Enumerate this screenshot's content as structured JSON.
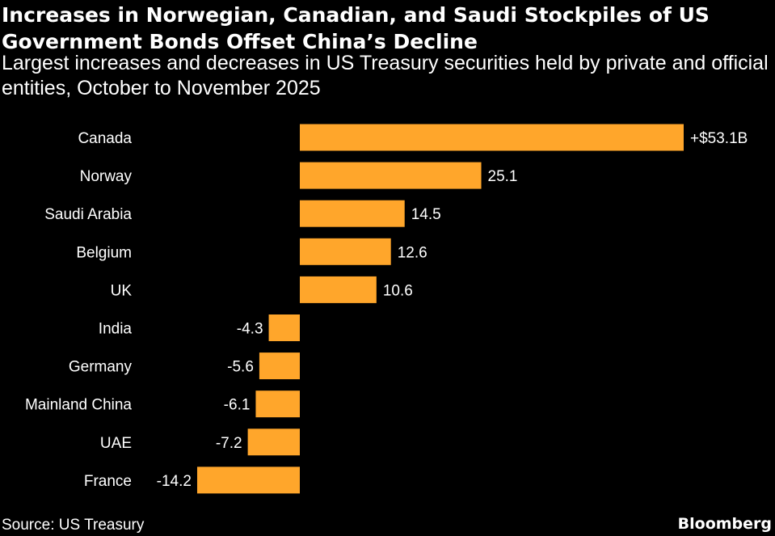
{
  "header": {
    "title": "Increases in Norwegian, Canadian, and Saudi Stockpiles of US Government Bonds Offset China’s Decline",
    "subtitle": "Largest increases and decreases in US Treasury securities held by private and official entities, October to November 2025"
  },
  "footer": {
    "source": "Source: US Treasury",
    "brand": "Bloomberg"
  },
  "colors": {
    "background": "#000000",
    "bar": "#ffa62b",
    "text": "#ffffff"
  },
  "chart_data": {
    "type": "bar",
    "orientation": "horizontal",
    "title": "Increases in Norwegian, Canadian, and Saudi Stockpiles of US Government Bonds Offset China’s Decline",
    "subtitle": "Largest increases and decreases in US Treasury securities held by private and official entities, October to November 2025",
    "unit": "billion USD",
    "xlabel": "",
    "ylabel": "",
    "xlim": [
      -14.2,
      53.1
    ],
    "grid": false,
    "categories": [
      "Canada",
      "Norway",
      "Saudi Arabia",
      "Belgium",
      "UK",
      "India",
      "Germany",
      "Mainland China",
      "UAE",
      "France"
    ],
    "values": [
      53.1,
      25.1,
      14.5,
      12.6,
      10.6,
      -4.3,
      -5.6,
      -6.1,
      -7.2,
      -14.2
    ],
    "data_labels": [
      "+$53.1B",
      "25.1",
      "14.5",
      "12.6",
      "10.6",
      "-4.3",
      "-5.6",
      "-6.1",
      "-7.2",
      "-14.2"
    ]
  }
}
